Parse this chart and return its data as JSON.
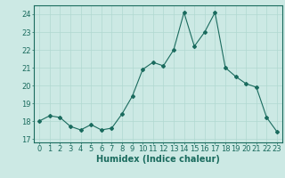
{
  "x": [
    0,
    1,
    2,
    3,
    4,
    5,
    6,
    7,
    8,
    9,
    10,
    11,
    12,
    13,
    14,
    15,
    16,
    17,
    18,
    19,
    20,
    21,
    22,
    23
  ],
  "y": [
    18.0,
    18.3,
    18.2,
    17.7,
    17.5,
    17.8,
    17.5,
    17.6,
    18.4,
    19.4,
    20.9,
    21.3,
    21.1,
    22.0,
    24.1,
    22.2,
    23.0,
    24.1,
    21.0,
    20.5,
    20.1,
    19.9,
    18.2,
    17.4
  ],
  "line_color": "#1a6b5e",
  "marker": "D",
  "marker_size": 2,
  "bg_color": "#cce9e4",
  "grid_color": "#b0d8d0",
  "xlabel": "Humidex (Indice chaleur)",
  "xlim": [
    -0.5,
    23.5
  ],
  "ylim": [
    16.8,
    24.5
  ],
  "yticks": [
    17,
    18,
    19,
    20,
    21,
    22,
    23,
    24
  ],
  "xticks": [
    0,
    1,
    2,
    3,
    4,
    5,
    6,
    7,
    8,
    9,
    10,
    11,
    12,
    13,
    14,
    15,
    16,
    17,
    18,
    19,
    20,
    21,
    22,
    23
  ],
  "xlabel_fontsize": 7,
  "tick_fontsize": 6
}
